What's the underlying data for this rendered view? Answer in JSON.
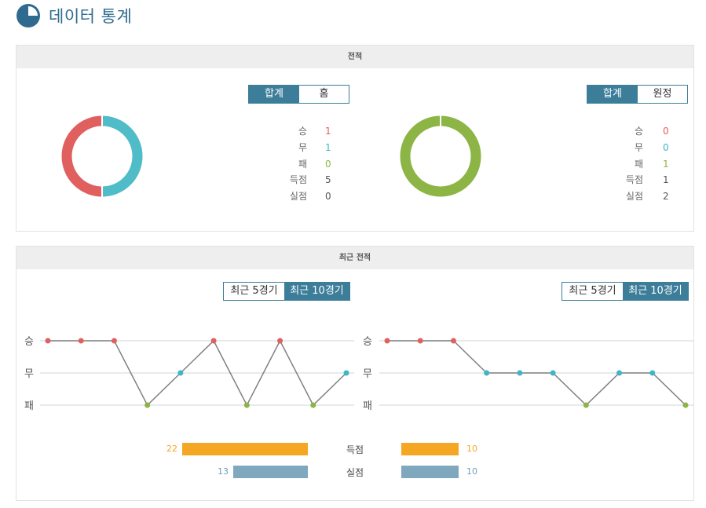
{
  "page": {
    "title": "데이터 통계",
    "icon": "pie-chart-icon"
  },
  "record": {
    "header": "전적",
    "left": {
      "toggle": [
        "합계",
        "홈"
      ],
      "stats": [
        {
          "label": "승",
          "value": "1",
          "color": "#e06060"
        },
        {
          "label": "무",
          "value": "1",
          "color": "#3fb6c6"
        },
        {
          "label": "패",
          "value": "0",
          "color": "#8db545"
        },
        {
          "label": "득점",
          "value": "5",
          "color": "#555555"
        },
        {
          "label": "실점",
          "value": "0",
          "color": "#555555"
        }
      ],
      "donut": {
        "win": 1,
        "draw": 1,
        "loss": 0
      }
    },
    "right": {
      "toggle": [
        "합계",
        "원정"
      ],
      "stats": [
        {
          "label": "승",
          "value": "0",
          "color": "#e06060"
        },
        {
          "label": "무",
          "value": "0",
          "color": "#3fb6c6"
        },
        {
          "label": "패",
          "value": "1",
          "color": "#8db545"
        },
        {
          "label": "득점",
          "value": "1",
          "color": "#555555"
        },
        {
          "label": "실점",
          "value": "2",
          "color": "#555555"
        }
      ],
      "donut": {
        "win": 0,
        "draw": 0,
        "loss": 1
      }
    }
  },
  "recent": {
    "header": "최근 전적",
    "left_toggle": [
      "최근 5경기",
      "최근 10경기"
    ],
    "right_toggle": [
      "최근 5경기",
      "최근 10경기"
    ],
    "axis_labels": [
      "승",
      "무",
      "패"
    ],
    "goals": {
      "scored_label": "득점",
      "conceded_label": "실점",
      "left_scored": "22",
      "left_conceded": "13",
      "right_scored": "10",
      "right_conceded": "10"
    }
  },
  "chart_data": [
    {
      "type": "line",
      "y_categories": [
        "패",
        "무",
        "승"
      ],
      "results": [
        "승",
        "승",
        "승",
        "패",
        "무",
        "승",
        "패",
        "승",
        "패",
        "무"
      ]
    },
    {
      "type": "line",
      "y_categories": [
        "패",
        "무",
        "승"
      ],
      "results": [
        "승",
        "승",
        "승",
        "무",
        "무",
        "무",
        "패",
        "무",
        "무",
        "패"
      ]
    }
  ],
  "colors": {
    "win": "#e06060",
    "draw": "#3fb6c6",
    "loss": "#8db545",
    "accent": "#3c7d99",
    "scored_bar": "#f5a623",
    "conceded_bar": "#7fa7bd"
  }
}
